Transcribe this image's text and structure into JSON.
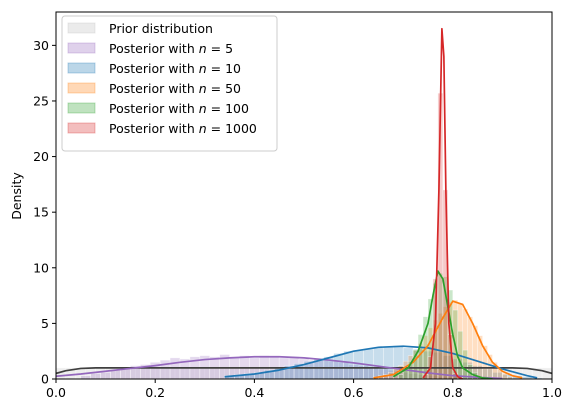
{
  "chart_data": {
    "type": "histogram+kde",
    "ylabel": "Density",
    "xlabel": "",
    "xlim": [
      0.0,
      1.0
    ],
    "ylim": [
      0,
      33
    ],
    "xticks": [
      "0.0",
      "0.2",
      "0.4",
      "0.6",
      "0.8",
      "1.0"
    ],
    "yticks": [
      "0",
      "5",
      "10",
      "15",
      "20",
      "25",
      "30"
    ],
    "legend_position": "upper-left",
    "series": [
      {
        "legend_prefix": "Prior distribution",
        "n_label": "",
        "fill": "#bdbdbd",
        "line": "#404040",
        "hist": {
          "start": 0.0,
          "end": 1.0,
          "bins": 50,
          "values": [
            1.0,
            1.0,
            1.0,
            1.0,
            1.0,
            1.0,
            1.0,
            1.0,
            1.0,
            1.0,
            1.0,
            1.0,
            1.0,
            1.0,
            1.0,
            1.0,
            1.0,
            1.0,
            1.0,
            1.0,
            1.0,
            1.0,
            1.0,
            1.0,
            1.0,
            1.0,
            1.0,
            1.0,
            1.0,
            1.0,
            1.0,
            1.0,
            1.0,
            1.0,
            1.0,
            1.0,
            1.0,
            1.0,
            1.0,
            1.0,
            1.0,
            1.0,
            1.0,
            1.0,
            1.0,
            1.0,
            1.0,
            1.0,
            1.0,
            1.0
          ]
        },
        "kde": {
          "x": [
            0.0,
            0.02,
            0.05,
            0.08,
            0.5,
            0.92,
            0.95,
            0.98,
            1.0
          ],
          "y": [
            0.5,
            0.75,
            0.95,
            1.0,
            1.0,
            1.0,
            0.95,
            0.75,
            0.5
          ]
        }
      },
      {
        "legend_prefix": "Posterior with ",
        "n_label": "n = 5",
        "fill": "#9467bd",
        "line": "#9467bd",
        "hist": {
          "start": 0.05,
          "end": 0.85,
          "bins": 40,
          "values": [
            0.3,
            0.5,
            0.6,
            0.8,
            1.0,
            1.2,
            1.3,
            1.5,
            1.7,
            1.9,
            1.8,
            2.0,
            2.1,
            2.0,
            2.2,
            2.0,
            2.1,
            1.9,
            2.1,
            2.0,
            1.9,
            2.0,
            1.8,
            1.7,
            1.8,
            1.6,
            1.5,
            1.3,
            1.2,
            1.0,
            0.9,
            0.8,
            0.6,
            0.5,
            0.4,
            0.3,
            0.2,
            0.2,
            0.1,
            0.1
          ]
        },
        "kde": {
          "x": [
            0.0,
            0.05,
            0.1,
            0.15,
            0.2,
            0.25,
            0.3,
            0.35,
            0.4,
            0.45,
            0.5,
            0.55,
            0.6,
            0.65,
            0.7,
            0.75,
            0.8,
            0.85,
            0.9
          ],
          "y": [
            0.25,
            0.45,
            0.7,
            0.95,
            1.2,
            1.5,
            1.75,
            1.9,
            2.0,
            2.0,
            1.9,
            1.7,
            1.45,
            1.15,
            0.85,
            0.55,
            0.3,
            0.15,
            0.05
          ]
        }
      },
      {
        "legend_prefix": "Posterior with ",
        "n_label": "n = 10",
        "fill": "#1f77b4",
        "line": "#1f77b4",
        "hist": {
          "start": 0.34,
          "end": 0.98,
          "bins": 32,
          "values": [
            0.3,
            0.4,
            0.5,
            0.6,
            0.8,
            1.0,
            1.2,
            1.4,
            1.6,
            1.8,
            2.0,
            2.3,
            2.5,
            2.6,
            2.7,
            2.8,
            2.9,
            3.0,
            2.8,
            2.7,
            2.5,
            2.4,
            2.1,
            1.8,
            1.5,
            1.2,
            0.9,
            0.6,
            0.4,
            0.3,
            0.2,
            0.1
          ]
        },
        "kde": {
          "x": [
            0.34,
            0.4,
            0.45,
            0.5,
            0.55,
            0.6,
            0.65,
            0.7,
            0.75,
            0.8,
            0.85,
            0.9,
            0.95,
            0.97
          ],
          "y": [
            0.2,
            0.45,
            0.8,
            1.3,
            1.9,
            2.5,
            2.85,
            2.95,
            2.8,
            2.3,
            1.6,
            0.9,
            0.3,
            0.1
          ]
        }
      },
      {
        "legend_prefix": "Posterior with ",
        "n_label": "n = 50",
        "fill": "#ff7f0e",
        "line": "#ff7f0e",
        "hist": {
          "start": 0.64,
          "end": 0.92,
          "bins": 28,
          "values": [
            0.2,
            0.3,
            0.4,
            0.6,
            0.9,
            1.2,
            1.6,
            2.1,
            2.6,
            3.2,
            3.9,
            4.6,
            5.3,
            5.9,
            6.5,
            6.9,
            7.1,
            6.8,
            6.3,
            5.6,
            4.8,
            3.9,
            3.0,
            2.2,
            1.5,
            0.9,
            0.5,
            0.2
          ]
        },
        "kde": {
          "x": [
            0.64,
            0.68,
            0.72,
            0.75,
            0.78,
            0.8,
            0.82,
            0.84,
            0.86,
            0.88,
            0.9,
            0.92,
            0.94
          ],
          "y": [
            0.1,
            0.4,
            1.5,
            3.0,
            5.5,
            7.0,
            6.7,
            5.0,
            3.0,
            1.5,
            0.7,
            0.3,
            0.1
          ]
        }
      },
      {
        "legend_prefix": "Posterior with ",
        "n_label": "n = 100",
        "fill": "#2ca02c",
        "line": "#2ca02c",
        "hist": {
          "start": 0.69,
          "end": 0.86,
          "bins": 17,
          "values": [
            0.4,
            0.9,
            1.6,
            2.6,
            4.0,
            5.6,
            7.2,
            8.6,
            9.5,
            9.2,
            8.0,
            6.2,
            4.3,
            2.6,
            1.3,
            0.6,
            0.2
          ]
        },
        "kde": {
          "x": [
            0.68,
            0.71,
            0.73,
            0.75,
            0.76,
            0.77,
            0.78,
            0.79,
            0.8,
            0.81,
            0.82,
            0.84,
            0.86,
            0.88
          ],
          "y": [
            0.2,
            1.0,
            2.5,
            5.0,
            7.5,
            9.7,
            9.0,
            6.5,
            4.0,
            2.0,
            1.0,
            0.4,
            0.1,
            0.0
          ]
        }
      },
      {
        "legend_prefix": "Posterior with ",
        "n_label": "n = 1000",
        "fill": "#d62728",
        "line": "#d62728",
        "hist": {
          "start": 0.74,
          "end": 0.82,
          "bins": 8,
          "values": [
            0.4,
            2.0,
            9.0,
            25.7,
            17.0,
            4.0,
            0.5,
            0.1
          ]
        },
        "kde": {
          "x": [
            0.74,
            0.755,
            0.765,
            0.772,
            0.778,
            0.782,
            0.786,
            0.792,
            0.8,
            0.81,
            0.82
          ],
          "y": [
            0.1,
            1.0,
            5.0,
            17.0,
            31.5,
            29.0,
            17.0,
            5.0,
            1.0,
            0.2,
            0.0
          ]
        }
      }
    ]
  }
}
